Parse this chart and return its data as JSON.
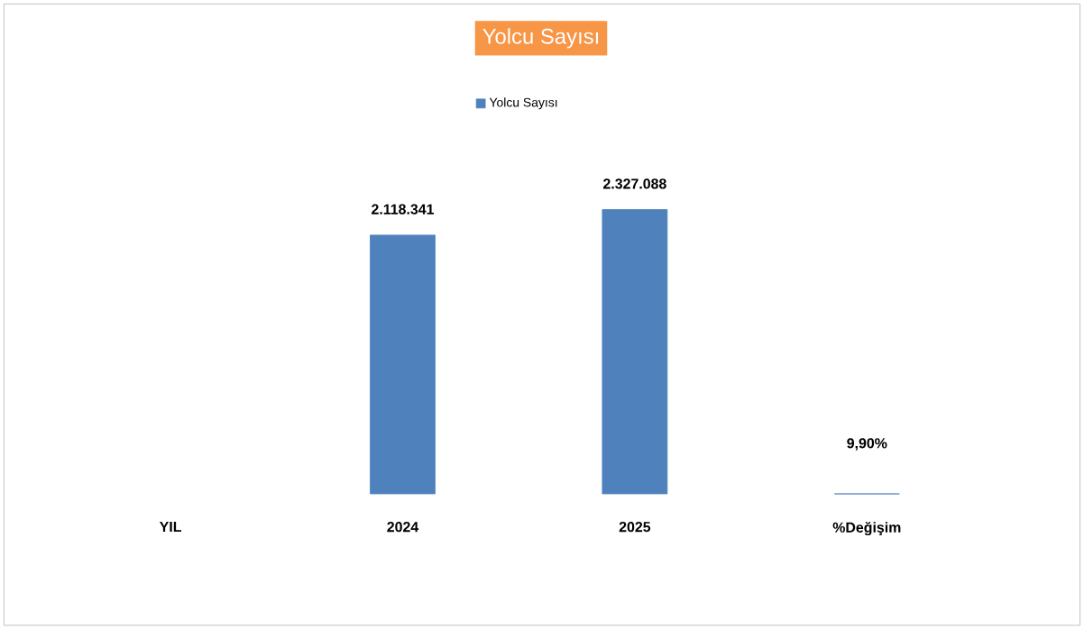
{
  "chart_data": {
    "type": "bar",
    "title": "Yolcu Sayısı",
    "categories": [
      "YIL",
      "2024",
      "2025",
      "%Değişim"
    ],
    "series": [
      {
        "name": "Yolcu Sayısı",
        "color": "#4f81bd",
        "values": [
          null,
          2118341,
          2327088,
          9.9
        ],
        "value_labels": [
          null,
          "2.118.341",
          "2.327.088",
          "9,90%"
        ]
      }
    ],
    "legend": "top"
  }
}
